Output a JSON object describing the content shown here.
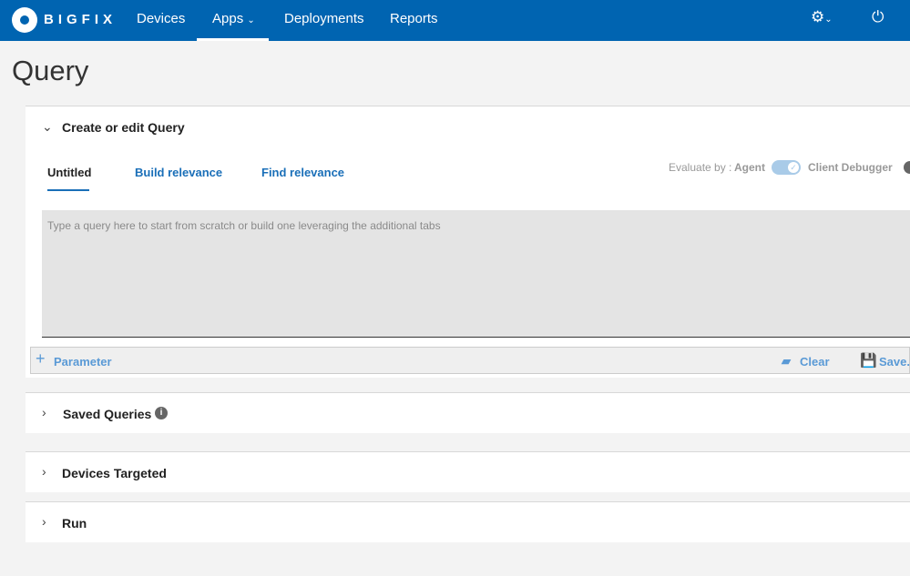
{
  "nav": {
    "brand": "BIGFIX",
    "items": [
      "Devices",
      "Apps",
      "Deployments",
      "Reports"
    ]
  },
  "page": {
    "title": "Query"
  },
  "create": {
    "title": "Create or edit Query",
    "tabs": [
      "Untitled",
      "Build relevance",
      "Find relevance"
    ],
    "evaluate_label": "Evaluate by :",
    "agent": "Agent",
    "client_debugger": "Client Debugger",
    "toggle_on": true,
    "placeholder": "Type a query here to start from scratch or build one leveraging the additional tabs",
    "parameter": "Parameter",
    "clear": "Clear",
    "save": "Save..."
  },
  "sections": [
    "Saved Queries",
    "Devices Targeted",
    "Run"
  ]
}
